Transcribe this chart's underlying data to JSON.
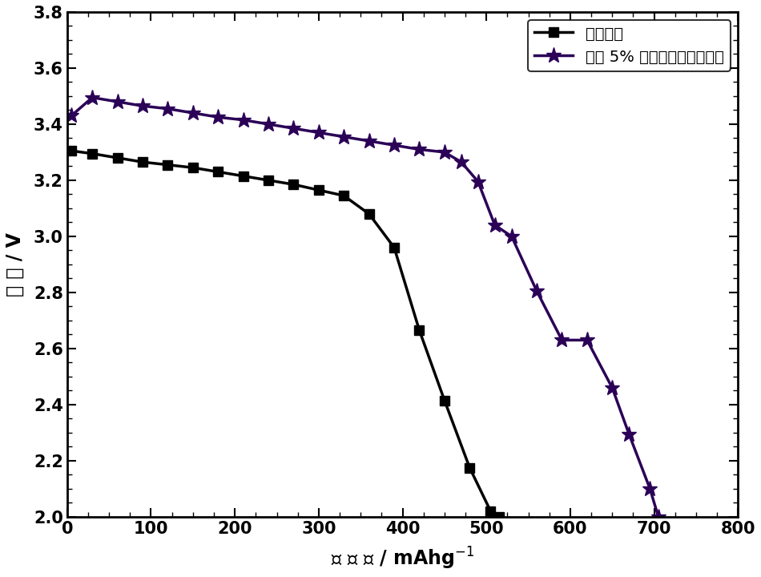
{
  "series1_label": "空白电池",
  "series2_label": "添加 5% 硫氮掺杂石墨烯电池",
  "series1_color": "#000000",
  "series2_color": "#2b0057",
  "series1_x": [
    5,
    30,
    60,
    90,
    120,
    150,
    180,
    210,
    240,
    270,
    300,
    330,
    360,
    390,
    420,
    450,
    480,
    505,
    515
  ],
  "series1_y": [
    3.305,
    3.295,
    3.28,
    3.265,
    3.255,
    3.245,
    3.23,
    3.215,
    3.2,
    3.185,
    3.165,
    3.145,
    3.08,
    2.96,
    2.665,
    2.415,
    2.175,
    2.02,
    2.0
  ],
  "series2_x": [
    5,
    30,
    60,
    90,
    120,
    150,
    180,
    210,
    240,
    270,
    300,
    330,
    360,
    390,
    420,
    450,
    470,
    490,
    510,
    530,
    560,
    590,
    620,
    650,
    670,
    695,
    705
  ],
  "series2_y": [
    3.43,
    3.495,
    3.48,
    3.465,
    3.455,
    3.44,
    3.425,
    3.415,
    3.4,
    3.385,
    3.37,
    3.355,
    3.34,
    3.325,
    3.31,
    3.3,
    3.265,
    3.195,
    3.04,
    3.0,
    2.805,
    2.63,
    2.63,
    2.46,
    2.295,
    2.1,
    2.0
  ],
  "xlabel": "比 容 量 / mAhg$^{-1}$",
  "ylabel": "电 压 / V",
  "xlim": [
    0,
    800
  ],
  "ylim": [
    2.0,
    3.8
  ],
  "xticks": [
    0,
    100,
    200,
    300,
    400,
    500,
    600,
    700,
    800
  ],
  "yticks": [
    2.0,
    2.2,
    2.4,
    2.6,
    2.8,
    3.0,
    3.2,
    3.4,
    3.6,
    3.8
  ],
  "background_color": "#ffffff",
  "linewidth": 2.5,
  "markersize_square": 9,
  "markersize_star": 14
}
